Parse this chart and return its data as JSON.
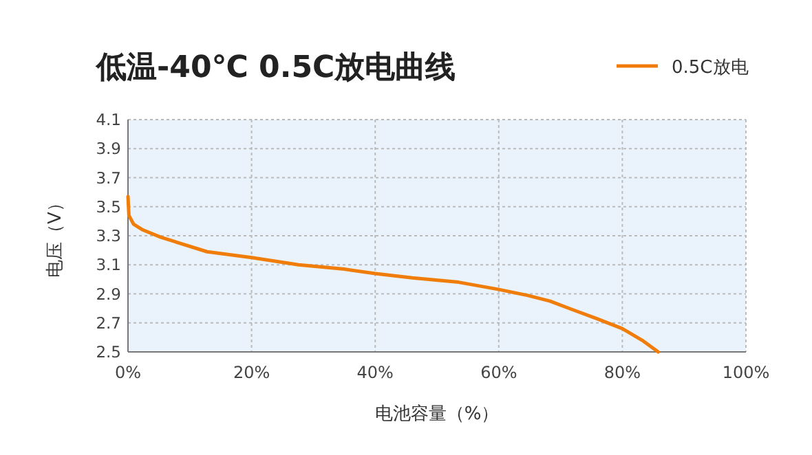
{
  "chart_data": {
    "type": "line",
    "title": "低温-40℃ 0.5C放电曲线",
    "xlabel": "电池容量（%）",
    "ylabel": "电压（V）",
    "x": [
      0,
      0.15,
      0.9,
      2.4,
      5.3,
      12.8,
      20,
      27.6,
      35,
      40,
      46,
      53.5,
      60,
      64.6,
      68.3,
      72,
      75.8,
      80,
      83.2,
      85.8
    ],
    "series": [
      {
        "name": "0.5C放电",
        "color": "#f07d0a",
        "values": [
          3.57,
          3.44,
          3.38,
          3.34,
          3.29,
          3.19,
          3.15,
          3.1,
          3.07,
          3.04,
          3.01,
          2.98,
          2.93,
          2.89,
          2.85,
          2.79,
          2.73,
          2.66,
          2.58,
          2.5
        ]
      }
    ],
    "xlim": [
      0,
      100
    ],
    "xticks": [
      {
        "value": 0,
        "label": "0%"
      },
      {
        "value": 20,
        "label": "20%"
      },
      {
        "value": 40,
        "label": "40%"
      },
      {
        "value": 60,
        "label": "60%"
      },
      {
        "value": 80,
        "label": "80%"
      },
      {
        "value": 100,
        "label": "100%"
      }
    ],
    "ylim": [
      2.5,
      4.1
    ],
    "yticks": [
      2.5,
      2.7,
      2.9,
      3.1,
      3.3,
      3.5,
      3.7,
      3.9,
      4.1
    ],
    "grid": true,
    "legend": "top right",
    "marker": "none",
    "line_style": "solid"
  }
}
